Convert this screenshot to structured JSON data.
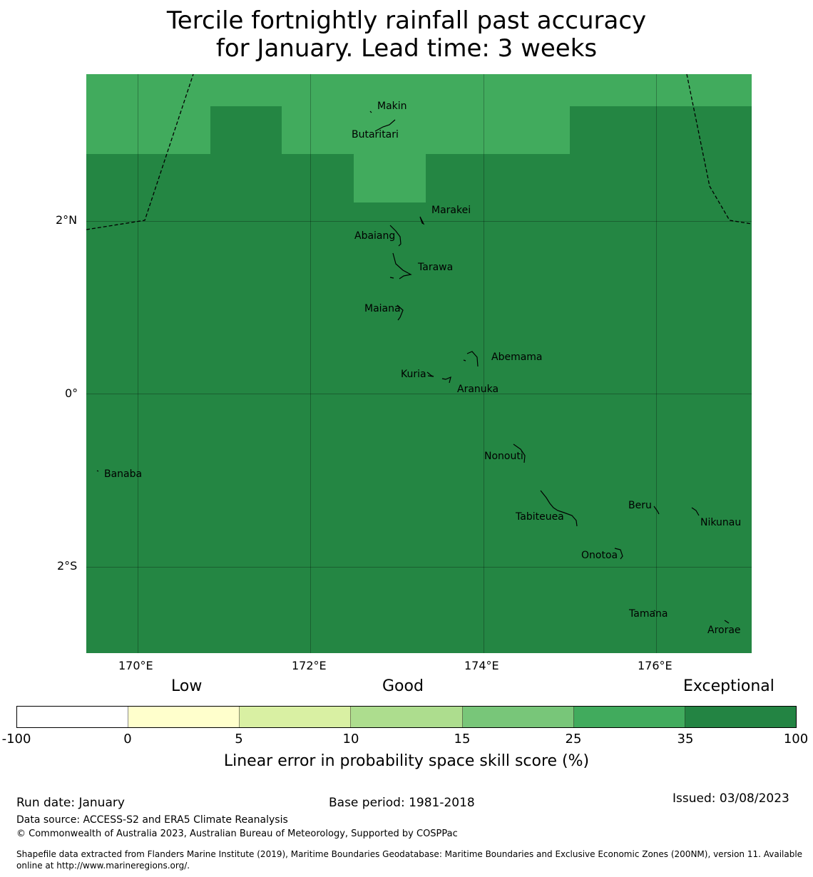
{
  "title": {
    "line1": "Tercile fortnightly rainfall past accuracy",
    "line2": "for January. Lead time: 3 weeks"
  },
  "map": {
    "lat_labels": [
      "2°N",
      "0°",
      "2°S"
    ],
    "lon_labels": [
      "170°E",
      "172°E",
      "174°E",
      "176°E"
    ],
    "islands": [
      "Makin",
      "Butaritari",
      "Marakei",
      "Abaiang",
      "Tarawa",
      "Maiana",
      "Abemama",
      "Kuria",
      "Aranuka",
      "Nonouti",
      "Banaba",
      "Beru",
      "Tabiteuea",
      "Nikunau",
      "Onotoa",
      "Tamana",
      "Arorae"
    ],
    "colors": {
      "exceptional": "#248643",
      "very_good": "#41ab5d"
    }
  },
  "legend": {
    "category_low": "Low",
    "category_good": "Good",
    "category_exceptional": "Exceptional",
    "ticks": [
      "-100",
      "0",
      "5",
      "10",
      "15",
      "25",
      "35",
      "100"
    ],
    "colors": [
      "#ffffff",
      "#ffffcc",
      "#d9f0a3",
      "#addd8e",
      "#78c679",
      "#41ab5d",
      "#238443"
    ],
    "label": "Linear error in probability space skill score (%)"
  },
  "footer": {
    "run_date": "Run date: January",
    "base_period": "Base period: 1981-2018",
    "issued": "Issued: 03/08/2023",
    "data_source": "Data source: ACCESS-S2 and ERA5 Climate Reanalysis",
    "copyright": "© Commonwealth of Australia 2023, Australian Bureau of Meteorology, Supported by COSPPac",
    "shapefile_line1": "Shapefile data extracted from Flanders Marine Institute (2019), Maritime Boundaries Geodatabase: Maritime Boundaries and Exclusive Economic Zones (200NM), version 11. Available",
    "shapefile_line2": "online at http://www.marineregions.org/."
  }
}
